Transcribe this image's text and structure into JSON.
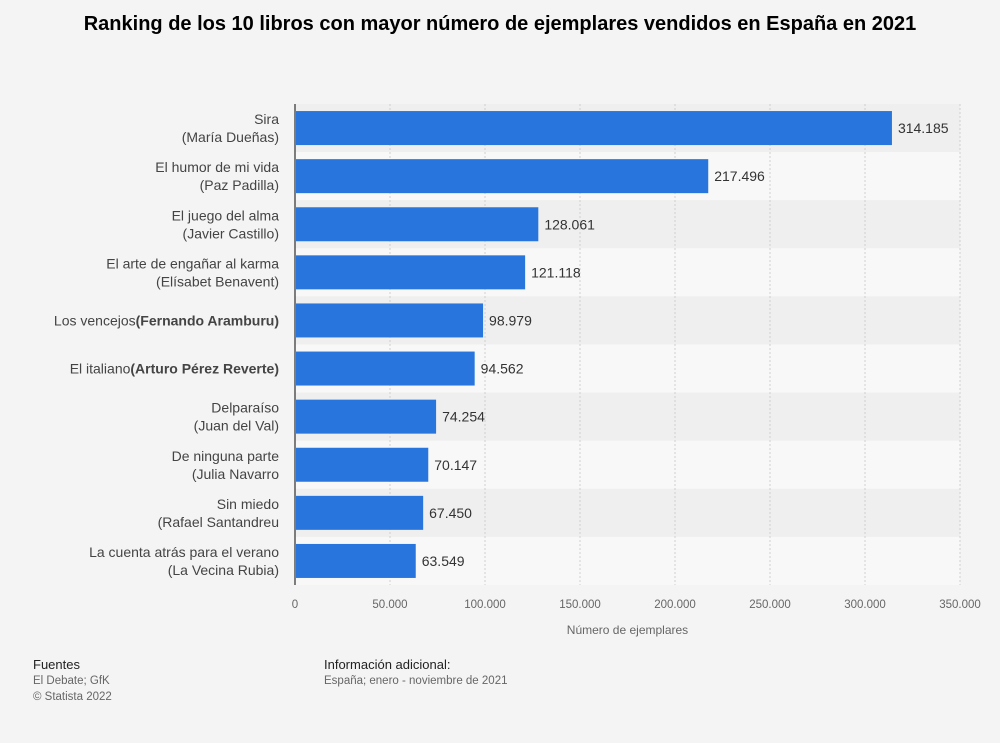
{
  "chart_data": {
    "type": "bar",
    "orientation": "horizontal",
    "title": "Ranking de los 10 libros con mayor número de ejemplares vendidos en España en 2021",
    "categories": [
      {
        "title": "Sira",
        "author": "(María Dueñas)",
        "inline": false
      },
      {
        "title": "El humor de mi vida",
        "author": "(Paz Padilla)",
        "inline": false
      },
      {
        "title": "El juego del alma",
        "author": "(Javier Castillo)",
        "inline": false
      },
      {
        "title": "El arte de engañar al karma",
        "author": "(Elísabet Benavent)",
        "inline": false
      },
      {
        "title": "Los vencejos",
        "author": "(Fernando Aramburu)",
        "inline": true
      },
      {
        "title": "El italiano",
        "author": "(Arturo Pérez Reverte)",
        "inline": true
      },
      {
        "title": "Delparaíso",
        "author": "(Juan del Val)",
        "inline": false
      },
      {
        "title": "De ninguna parte",
        "author": "(Julia Navarro",
        "inline": false
      },
      {
        "title": "Sin miedo",
        "author": "(Rafael Santandreu",
        "inline": false
      },
      {
        "title": "La cuenta atrás para el verano",
        "author": "(La Vecina Rubia)",
        "inline": false
      }
    ],
    "values": [
      314185,
      217496,
      128061,
      121118,
      98979,
      94562,
      74254,
      70147,
      67450,
      63549
    ],
    "value_labels": [
      "314.185",
      "217.496",
      "128.061",
      "121.118",
      "98.979",
      "94.562",
      "74.254",
      "70.147",
      "67.450",
      "63.549"
    ],
    "xlabel": "Número de ejemplares",
    "ylabel": "",
    "xlim": [
      0,
      350000
    ],
    "ticks": [
      0,
      50000,
      100000,
      150000,
      200000,
      250000,
      300000,
      350000
    ],
    "tick_labels": [
      "0",
      "50.000",
      "100.000",
      "150.000",
      "200.000",
      "250.000",
      "300.000",
      "350.000"
    ],
    "grid": true,
    "bar_color": "#2876dd"
  },
  "footer": {
    "sources_heading": "Fuentes",
    "sources": "El Debate; GfK",
    "copyright": "© Statista 2022",
    "info_heading": "Información adicional:",
    "info": "España; enero - noviembre de 2021"
  }
}
